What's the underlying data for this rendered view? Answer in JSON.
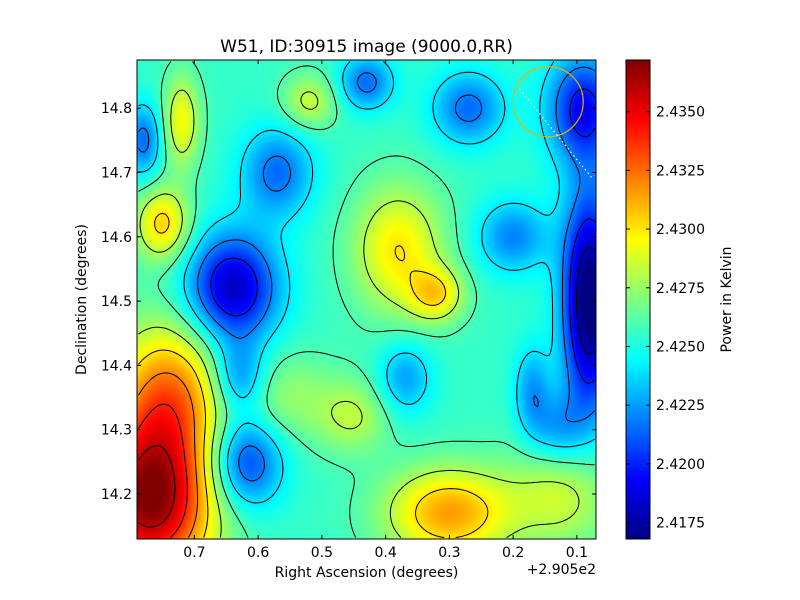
{
  "chart_data": {
    "type": "heatmap",
    "title": "W51, ID:30915 image (9000.0,RR)",
    "xlabel": "Right Ascension (degrees)",
    "ylabel": "Declination (degrees)",
    "x_offset_label": "+2.905e2",
    "colorbar_label": "Power in Kelvin",
    "xlim": [
      0.79,
      0.07
    ],
    "ylim": [
      14.13,
      14.875
    ],
    "xticks": [
      {
        "value": 0.7,
        "label": "0.7"
      },
      {
        "value": 0.6,
        "label": "0.6"
      },
      {
        "value": 0.5,
        "label": "0.5"
      },
      {
        "value": 0.4,
        "label": "0.4"
      },
      {
        "value": 0.3,
        "label": "0.3"
      },
      {
        "value": 0.2,
        "label": "0.2"
      },
      {
        "value": 0.1,
        "label": "0.1"
      }
    ],
    "yticks": [
      {
        "value": 14.2,
        "label": "14.2"
      },
      {
        "value": 14.3,
        "label": "14.3"
      },
      {
        "value": 14.4,
        "label": "14.4"
      },
      {
        "value": 14.5,
        "label": "14.5"
      },
      {
        "value": 14.6,
        "label": "14.6"
      },
      {
        "value": 14.7,
        "label": "14.7"
      },
      {
        "value": 14.8,
        "label": "14.8"
      }
    ],
    "colorbar": {
      "vmin": 2.4168,
      "vmax": 2.4372,
      "ticks": [
        {
          "value": 2.4175,
          "label": "2.4175"
        },
        {
          "value": 2.42,
          "label": "2.4200"
        },
        {
          "value": 2.4225,
          "label": "2.4225"
        },
        {
          "value": 2.425,
          "label": "2.4250"
        },
        {
          "value": 2.4275,
          "label": "2.4275"
        },
        {
          "value": 2.43,
          "label": "2.4300"
        },
        {
          "value": 2.4325,
          "label": "2.4325"
        },
        {
          "value": 2.435,
          "label": "2.4350"
        }
      ],
      "colormap": "jet"
    },
    "baseline": 2.4255,
    "blobs": [
      {
        "ra": 0.77,
        "dec": 14.19,
        "amp": 0.0115,
        "sx": 0.07,
        "sy": 0.09
      },
      {
        "ra": 0.74,
        "dec": 14.36,
        "amp": 0.006,
        "sx": 0.06,
        "sy": 0.08
      },
      {
        "ra": 0.3,
        "dec": 14.17,
        "amp": 0.006,
        "sx": 0.07,
        "sy": 0.05
      },
      {
        "ra": 0.38,
        "dec": 14.58,
        "amp": 0.0045,
        "sx": 0.05,
        "sy": 0.07
      },
      {
        "ra": 0.32,
        "dec": 14.51,
        "amp": 0.004,
        "sx": 0.03,
        "sy": 0.03
      },
      {
        "ra": 0.75,
        "dec": 14.62,
        "amp": 0.005,
        "sx": 0.03,
        "sy": 0.04
      },
      {
        "ra": 0.72,
        "dec": 14.78,
        "amp": 0.004,
        "sx": 0.02,
        "sy": 0.05
      },
      {
        "ra": 0.52,
        "dec": 14.81,
        "amp": 0.003,
        "sx": 0.03,
        "sy": 0.03
      },
      {
        "ra": 0.56,
        "dec": 14.35,
        "amp": 0.002,
        "sx": 0.06,
        "sy": 0.05
      },
      {
        "ra": 0.12,
        "dec": 14.2,
        "amp": 0.003,
        "sx": 0.06,
        "sy": 0.06
      },
      {
        "ra": 0.45,
        "dec": 14.32,
        "amp": 0.0025,
        "sx": 0.04,
        "sy": 0.04
      },
      {
        "ra": 0.64,
        "dec": 14.52,
        "amp": -0.0075,
        "sx": 0.05,
        "sy": 0.06
      },
      {
        "ra": 0.62,
        "dec": 14.25,
        "amp": -0.0055,
        "sx": 0.04,
        "sy": 0.05
      },
      {
        "ra": 0.63,
        "dec": 14.38,
        "amp": -0.004,
        "sx": 0.03,
        "sy": 0.04
      },
      {
        "ra": 0.08,
        "dec": 14.5,
        "amp": -0.0095,
        "sx": 0.03,
        "sy": 0.12
      },
      {
        "ra": 0.09,
        "dec": 14.8,
        "amp": -0.006,
        "sx": 0.04,
        "sy": 0.06
      },
      {
        "ra": 0.57,
        "dec": 14.7,
        "amp": -0.004,
        "sx": 0.04,
        "sy": 0.05
      },
      {
        "ra": 0.27,
        "dec": 14.8,
        "amp": -0.004,
        "sx": 0.04,
        "sy": 0.04
      },
      {
        "ra": 0.43,
        "dec": 14.84,
        "amp": -0.004,
        "sx": 0.03,
        "sy": 0.03
      },
      {
        "ra": 0.78,
        "dec": 14.75,
        "amp": -0.004,
        "sx": 0.02,
        "sy": 0.04
      },
      {
        "ra": 0.2,
        "dec": 14.6,
        "amp": -0.0035,
        "sx": 0.04,
        "sy": 0.04
      },
      {
        "ra": 0.37,
        "dec": 14.38,
        "amp": -0.003,
        "sx": 0.03,
        "sy": 0.04
      },
      {
        "ra": 0.13,
        "dec": 14.3,
        "amp": -0.003,
        "sx": 0.03,
        "sy": 0.04
      },
      {
        "ra": 0.17,
        "dec": 14.36,
        "amp": -0.003,
        "sx": 0.02,
        "sy": 0.05
      }
    ],
    "contour_levels": [
      2.418,
      2.42,
      2.422,
      2.424,
      2.426,
      2.428,
      2.43,
      2.432,
      2.434,
      2.436
    ],
    "circle": {
      "ra": 0.145,
      "dec": 14.81,
      "radius_deg": 0.055,
      "color": "#e6b400"
    },
    "dotted_line": {
      "from": {
        "ra": 0.19,
        "dec": 14.83
      },
      "to": {
        "ra": 0.075,
        "dec": 14.69
      },
      "color": "#ffffff"
    }
  }
}
